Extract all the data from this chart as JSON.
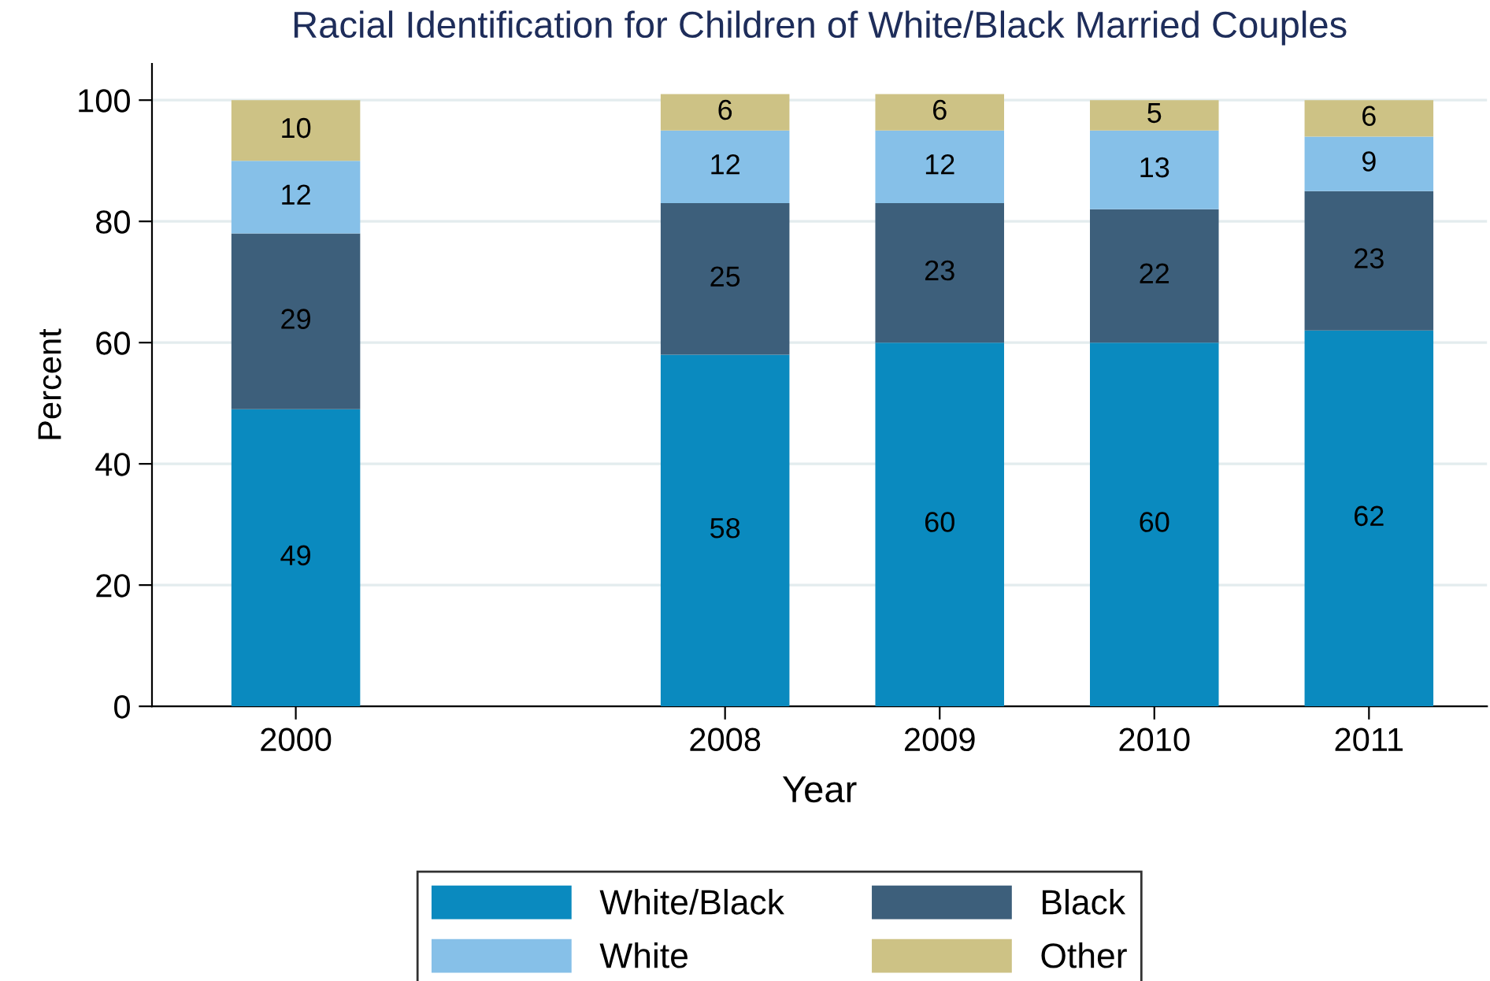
{
  "chart_data": {
    "type": "bar",
    "title": "Racial Identification for Children of White/Black Married Couples",
    "xlabel": "Year",
    "ylabel": "Percent",
    "categories": [
      "2000",
      null,
      "2008",
      "2009",
      "2010",
      "2011"
    ],
    "stacked": true,
    "data_labels": true,
    "series": [
      {
        "name": "White/Black",
        "color": "#0a8abf",
        "values": [
          49,
          null,
          58,
          60,
          60,
          62
        ]
      },
      {
        "name": "Black",
        "color": "#3d5f7b",
        "values": [
          29,
          null,
          25,
          23,
          22,
          23
        ]
      },
      {
        "name": "White",
        "color": "#86c0e8",
        "values": [
          12,
          null,
          12,
          12,
          13,
          9
        ]
      },
      {
        "name": "Other",
        "color": "#cdc285",
        "values": [
          10,
          null,
          6,
          6,
          5,
          6
        ]
      }
    ],
    "ylim": [
      0,
      106
    ],
    "yticks": [
      0,
      20,
      40,
      60,
      80,
      100
    ],
    "grid": "y",
    "legend": "bottom"
  }
}
